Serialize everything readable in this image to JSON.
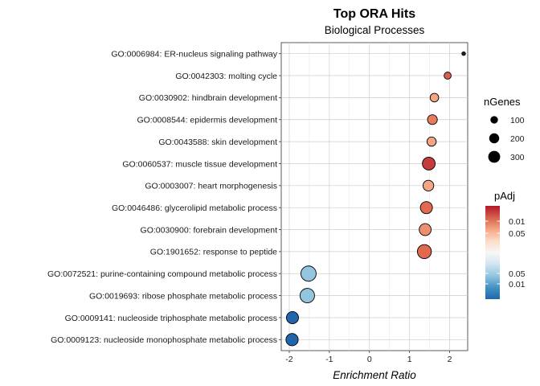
{
  "chart_data": {
    "type": "scatter",
    "title": "Top ORA Hits",
    "subtitle": "Biological Processes",
    "xlabel": "Enrichment Ratio",
    "ylabel": "",
    "xlim": [
      -2.2,
      2.45
    ],
    "xticks": [
      -2,
      -1,
      0,
      1,
      2
    ],
    "xtick_labels": [
      "-2",
      "-1",
      "0",
      "1",
      "2"
    ],
    "grid": true,
    "categories": [
      "GO:0006984: ER-nucleus signaling pathway",
      "GO:0042303: molting cycle",
      "GO:0030902: hindbrain development",
      "GO:0008544: epidermis development",
      "GO:0043588: skin development",
      "GO:0060537: muscle tissue development",
      "GO:0003007: heart morphogenesis",
      "GO:0046486: glycerolipid metabolic process",
      "GO:0030900: forebrain development",
      "GO:1901652: response to peptide",
      "GO:0072521: purine-containing compound metabolic process",
      "GO:0019693: ribose phosphate metabolic process",
      "GO:0009141: nucleoside triphosphate metabolic process",
      "GO:0009123: nucleoside monophosphate metabolic process"
    ],
    "points": [
      {
        "x": 2.35,
        "nGenes": 5,
        "color": "#222222"
      },
      {
        "x": 1.95,
        "nGenes": 45,
        "color": "#d6604d"
      },
      {
        "x": 1.62,
        "nGenes": 75,
        "color": "#f4a582"
      },
      {
        "x": 1.57,
        "nGenes": 105,
        "color": "#e57a5f"
      },
      {
        "x": 1.55,
        "nGenes": 90,
        "color": "#f4a582"
      },
      {
        "x": 1.48,
        "nGenes": 200,
        "color": "#c43c3c"
      },
      {
        "x": 1.47,
        "nGenes": 130,
        "color": "#f4a582"
      },
      {
        "x": 1.42,
        "nGenes": 175,
        "color": "#e0694f"
      },
      {
        "x": 1.39,
        "nGenes": 170,
        "color": "#ee8f6f"
      },
      {
        "x": 1.37,
        "nGenes": 245,
        "color": "#e0694f"
      },
      {
        "x": -1.52,
        "nGenes": 300,
        "color": "#92c5de"
      },
      {
        "x": -1.55,
        "nGenes": 265,
        "color": "#92c5de"
      },
      {
        "x": -1.92,
        "nGenes": 175,
        "color": "#2166ac"
      },
      {
        "x": -1.93,
        "nGenes": 180,
        "color": "#2166ac"
      }
    ],
    "legend_size": {
      "title": "nGenes",
      "entries": [
        {
          "label": "100",
          "value": 100
        },
        {
          "label": "200",
          "value": 200
        },
        {
          "label": "300",
          "value": 300
        }
      ]
    },
    "legend_color": {
      "title": "pAdj",
      "labels": [
        "0.01",
        "0.05",
        "0.05",
        "0.01"
      ],
      "colors": [
        "#b2182b",
        "#d6604d",
        "#f4a582",
        "#fddbc7",
        "#f7f7f7",
        "#d1e5f0",
        "#92c5de",
        "#4393c3",
        "#2166ac"
      ]
    },
    "legend_placement": "right"
  }
}
